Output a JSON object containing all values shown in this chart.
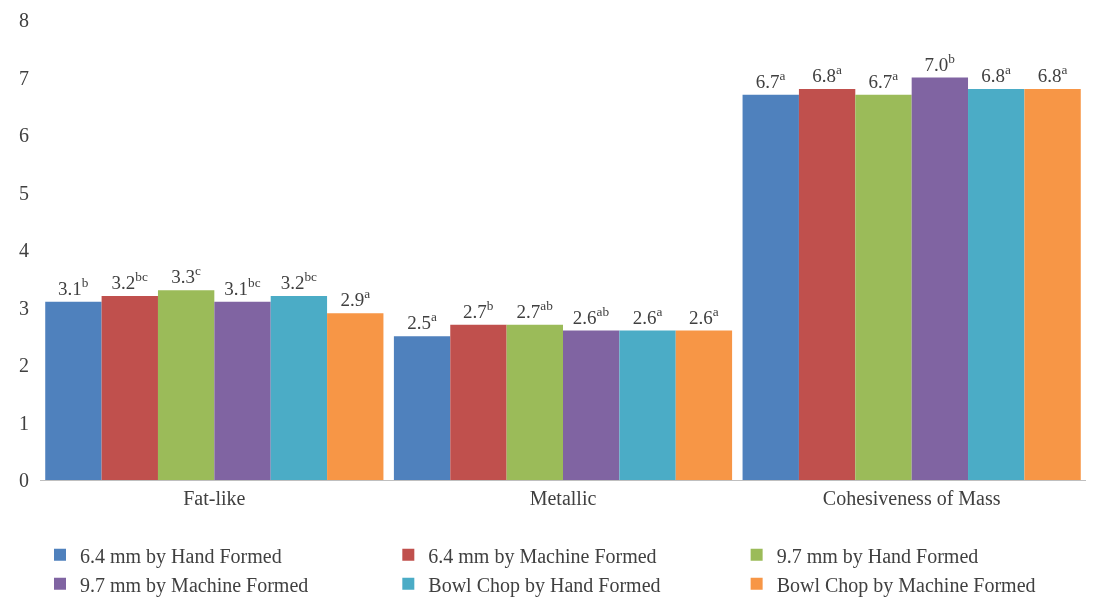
{
  "chart_data": {
    "type": "bar",
    "categories": [
      "Fat-like",
      "Metallic",
      "Cohesiveness of Mass"
    ],
    "series": [
      {
        "name": "6.4 mm by Hand Formed",
        "color": "#4f81bd",
        "values": [
          3.1,
          2.5,
          6.7
        ],
        "value_labels": [
          "3.1$^{b}$",
          "2.5$^{a}$",
          "6.7$^{a}$"
        ]
      },
      {
        "name": "6.4 mm by Machine Formed",
        "color": "#c0504d",
        "values": [
          3.2,
          2.7,
          6.8
        ],
        "value_labels": [
          "3.2$^{bc}$",
          "2.7$^{b}$",
          "6.8$^{a}$"
        ]
      },
      {
        "name": "9.7 mm by Hand Formed",
        "color": "#9bbb59",
        "values": [
          3.3,
          2.7,
          6.7
        ],
        "value_labels": [
          "3.3$^{c}$",
          "2.7$^{ab}$",
          "6.7$^{a}$"
        ]
      },
      {
        "name": "9.7 mm by Machine Formed",
        "color": "#8064a2",
        "values": [
          3.1,
          2.6,
          7.0
        ],
        "value_labels": [
          "3.1$^{bc}$",
          "2.6$^{ab}$",
          "7.0$^{b}$"
        ]
      },
      {
        "name": "Bowl Chop by Hand Formed",
        "color": "#4bacc6",
        "values": [
          3.2,
          2.6,
          6.8
        ],
        "value_labels": [
          "3.2$^{bc}$",
          "2.6$^{a}$",
          "6.8$^{a}$"
        ]
      },
      {
        "name": "Bowl Chop by Machine Formed",
        "color": "#f79646",
        "values": [
          2.9,
          2.6,
          6.8
        ],
        "value_labels": [
          "2.9$^{a}$",
          "2.6$^{a}$",
          "6.8$^{a}$"
        ]
      }
    ],
    "ylim": [
      0,
      8
    ],
    "yticks": [
      0,
      1,
      2,
      3,
      4,
      5,
      6,
      7,
      8
    ],
    "grid": false,
    "legend": "bottom"
  }
}
